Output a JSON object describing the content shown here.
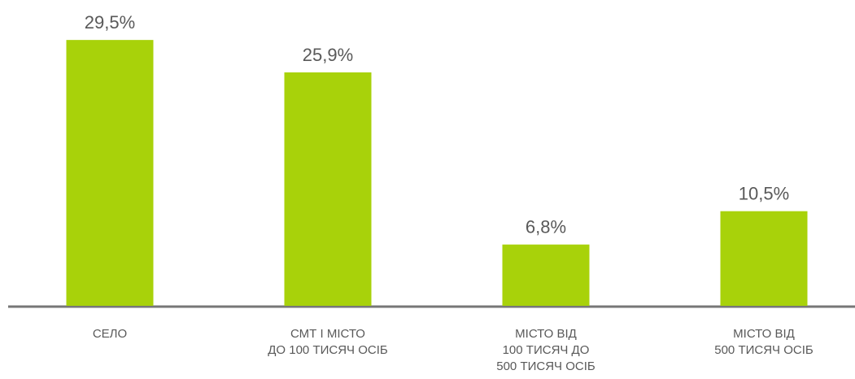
{
  "chart_data": {
    "type": "bar",
    "categories": [
      "СЕЛО",
      "СМТ І МІСТО\nДО 100 ТИСЯЧ ОСІБ",
      "МІСТО ВІД\n100 ТИСЯЧ ДО\n500 ТИСЯЧ ОСІБ",
      "МІСТО ВІД\n500 ТИСЯЧ ОСІБ"
    ],
    "values": [
      29.5,
      25.9,
      6.8,
      10.5
    ],
    "value_labels": [
      "29,5%",
      "25,9%",
      "6,8%",
      "10,5%"
    ],
    "color": "#a8d20a"
  }
}
